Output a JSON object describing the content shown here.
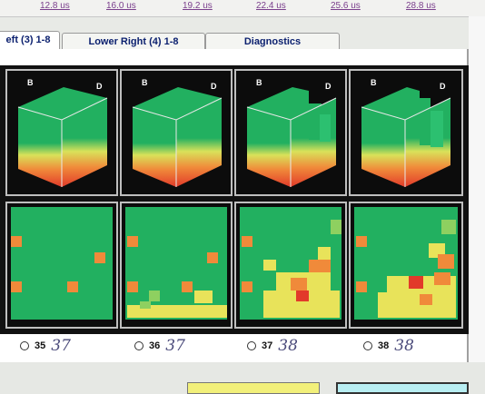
{
  "ruler": {
    "ticks": [
      "12.8 us",
      "16.0 us",
      "19.2 us",
      "22.4 us",
      "25.6 us",
      "28.8 us"
    ]
  },
  "tabs": [
    {
      "label": "eft (3) 1-8",
      "active": true
    },
    {
      "label": "Lower Right (4) 1-8",
      "active": false
    },
    {
      "label": "Diagnostics",
      "active": false
    }
  ],
  "cube_labels": {
    "left": "B",
    "right": "D"
  },
  "frames": [
    {
      "radio_label": "35",
      "handwritten": "37"
    },
    {
      "radio_label": "36",
      "handwritten": "37"
    },
    {
      "radio_label": "37",
      "handwritten": "38"
    },
    {
      "radio_label": "38",
      "handwritten": "38"
    }
  ],
  "colors": {
    "green": "#22b060",
    "yellow": "#e8e35a",
    "orange": "#f08a3a",
    "red": "#e23a2a",
    "panel_bg": "#0c0c0c"
  }
}
